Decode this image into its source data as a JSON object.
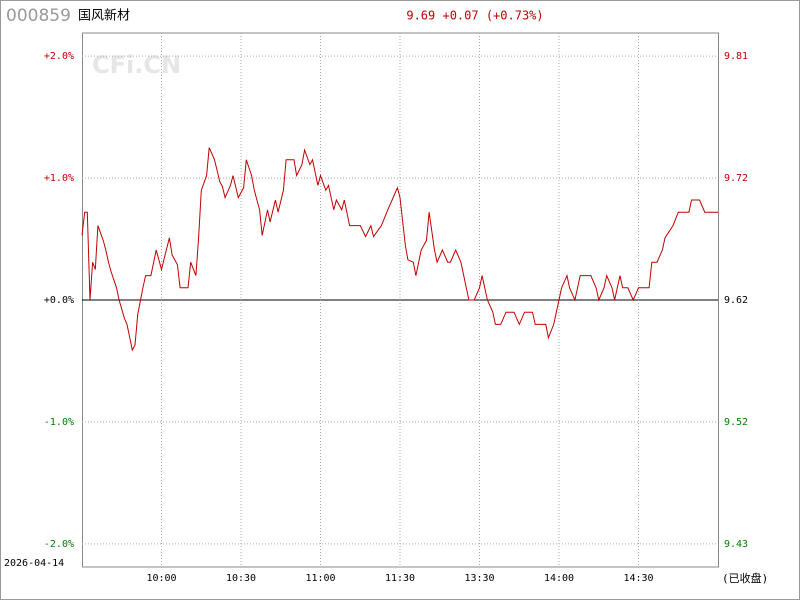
{
  "header": {
    "code": "000859",
    "name": "国风新材",
    "quote": "9.69 +0.07 (+0.73%)"
  },
  "chart_data": {
    "type": "line",
    "watermark": "CFi.CN",
    "date_label": "2026-04-14",
    "status_label": "(已收盘)",
    "x": [
      0,
      1,
      2,
      3,
      4,
      5,
      6,
      8,
      9,
      10,
      11,
      13,
      14,
      16,
      17,
      19,
      20,
      21,
      23,
      24,
      26,
      28,
      30,
      31,
      33,
      34,
      36,
      37,
      40,
      41,
      43,
      44,
      45,
      47,
      48,
      50,
      52,
      53,
      54,
      56,
      57,
      59,
      61,
      62,
      64,
      65,
      67,
      68,
      70,
      71,
      73,
      74,
      76,
      77,
      80,
      81,
      83,
      84,
      86,
      87,
      89,
      90,
      92,
      93,
      95,
      96,
      98,
      99,
      101,
      102,
      105,
      107,
      109,
      110,
      113,
      115,
      117,
      119,
      120,
      122,
      123,
      125,
      126,
      128,
      130,
      131,
      133,
      134,
      136,
      138,
      139,
      141,
      143,
      145,
      146,
      148,
      150,
      151,
      153,
      155,
      156,
      158,
      160,
      163,
      165,
      167,
      170,
      171,
      175,
      176,
      178,
      180,
      181,
      183,
      184,
      186,
      188,
      192,
      194,
      195,
      197,
      198,
      200,
      201,
      203,
      204,
      206,
      208,
      210,
      214,
      215,
      217,
      219,
      220,
      223,
      225,
      227,
      229,
      230,
      233,
      235,
      240
    ],
    "series": [
      {
        "name": "国风新材",
        "color": "#c00000",
        "values": [
          0.53,
          0.72,
          0.72,
          0,
          0.31,
          0.25,
          0.61,
          0.49,
          0.41,
          0.31,
          0.23,
          0.1,
          0,
          -0.15,
          -0.2,
          -0.41,
          -0.37,
          -0.12,
          0.1,
          0.2,
          0.2,
          0.41,
          0.25,
          0.34,
          0.51,
          0.37,
          0.29,
          0.1,
          0.1,
          0.31,
          0.2,
          0.51,
          0.9,
          1.02,
          1.25,
          1.15,
          0.97,
          0.93,
          0.84,
          0.94,
          1.02,
          0.84,
          0.92,
          1.15,
          1.02,
          0.9,
          0.74,
          0.53,
          0.74,
          0.64,
          0.82,
          0.72,
          0.9,
          1.15,
          1.15,
          1.02,
          1.11,
          1.23,
          1.11,
          1.15,
          0.94,
          1.02,
          0.9,
          0.94,
          0.74,
          0.82,
          0.74,
          0.82,
          0.61,
          0.61,
          0.61,
          0.52,
          0.61,
          0.52,
          0.61,
          0.72,
          0.82,
          0.92,
          0.84,
          0.45,
          0.33,
          0.31,
          0.2,
          0.41,
          0.49,
          0.72,
          0.41,
          0.31,
          0.41,
          0.31,
          0.31,
          0.41,
          0.31,
          0.1,
          0,
          0,
          0.1,
          0.2,
          0,
          -0.1,
          -0.2,
          -0.2,
          -0.1,
          -0.1,
          -0.2,
          -0.1,
          -0.1,
          -0.2,
          -0.2,
          -0.31,
          -0.2,
          0,
          0.1,
          0.2,
          0.1,
          0,
          0.2,
          0.2,
          0.1,
          0,
          0.1,
          0.2,
          0.1,
          0,
          0.2,
          0.1,
          0.1,
          0,
          0.1,
          0.1,
          0.31,
          0.31,
          0.41,
          0.51,
          0.61,
          0.72,
          0.72,
          0.72,
          0.82,
          0.82,
          0.72,
          0.72
        ]
      }
    ],
    "xlim": [
      0,
      240
    ],
    "xticks": [
      {
        "value": 30,
        "label": "10:00"
      },
      {
        "value": 60,
        "label": "10:30"
      },
      {
        "value": 90,
        "label": "11:00"
      },
      {
        "value": 120,
        "label": "11:30"
      },
      {
        "value": 150,
        "label": "13:30"
      },
      {
        "value": 180,
        "label": "14:00"
      },
      {
        "value": 210,
        "label": "14:30"
      }
    ],
    "ylim": [
      -2.19,
      2.19
    ],
    "yticks": [
      {
        "value": 2,
        "label": "+2.0%"
      },
      {
        "value": 1,
        "label": "+1.0%"
      },
      {
        "value": 0,
        "label": "+0.0%"
      },
      {
        "value": -1,
        "label": "-1.0%"
      },
      {
        "value": -2,
        "label": "-2.0%"
      }
    ],
    "y2lim": [
      9.4093,
      9.8307
    ],
    "y2ticks": [
      {
        "value": 9.8124,
        "label": "9.81"
      },
      {
        "value": 9.7162,
        "label": "9.72"
      },
      {
        "value": 9.62,
        "label": "9.62"
      },
      {
        "value": 9.5238,
        "label": "9.52"
      },
      {
        "value": 9.4276,
        "label": "9.43"
      }
    ],
    "up_color": "#c00000",
    "down_color": "#008000",
    "grid": true
  }
}
